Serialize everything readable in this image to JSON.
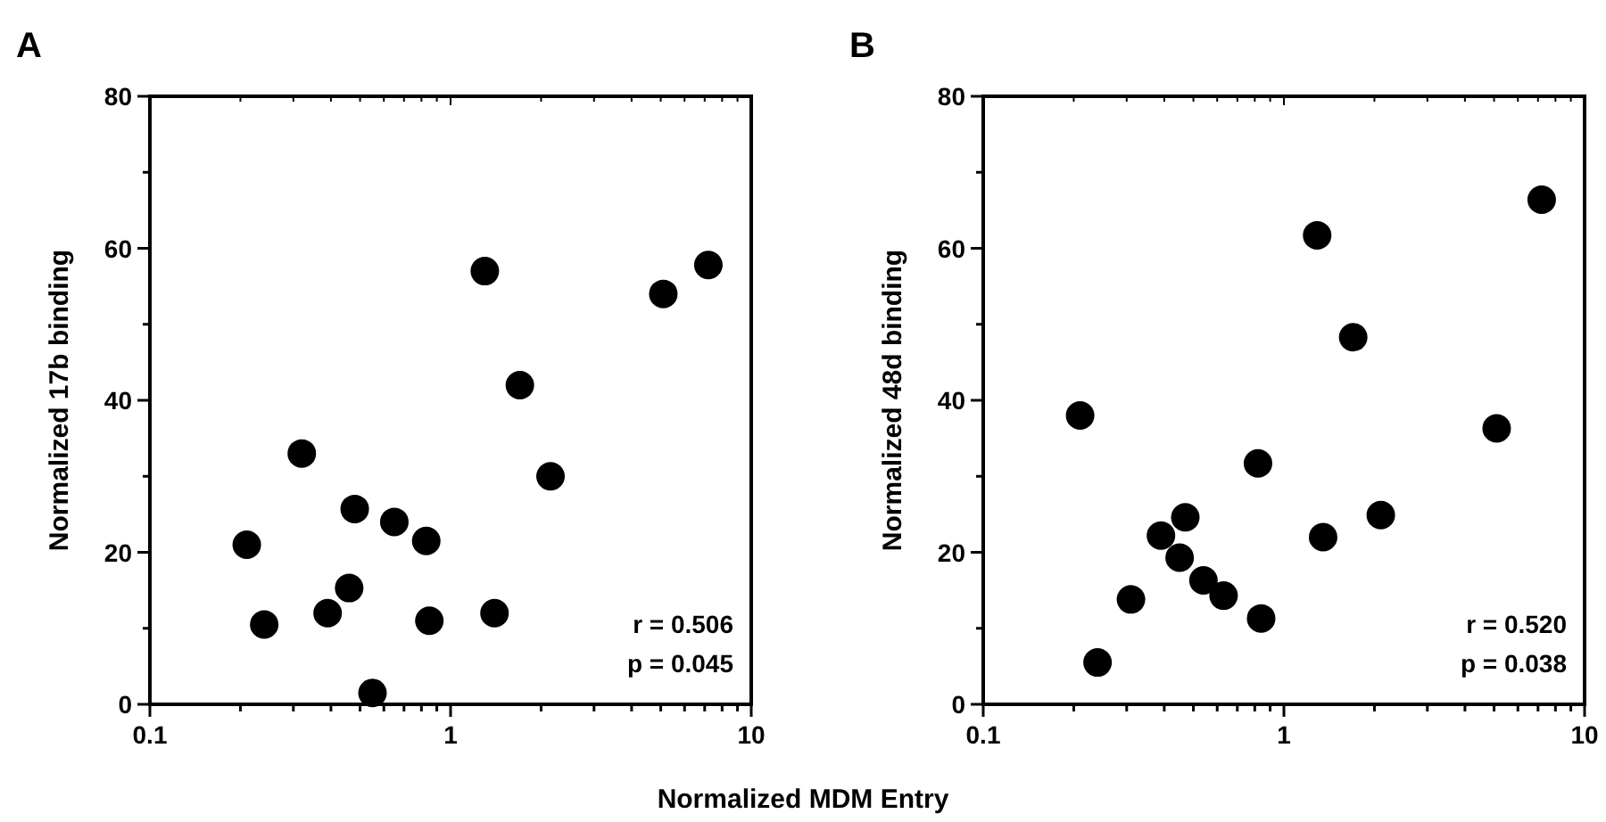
{
  "chart_data": [
    {
      "type": "scatter",
      "title": "A",
      "xlabel": "Normalized MDM Entry",
      "ylabel": "Normalized 17b binding",
      "log": "x",
      "grid": false,
      "marker": "circle",
      "xlim": [
        0.1,
        10
      ],
      "xticks": [
        0.1,
        {
          "value": 0.2,
          "label": null
        },
        {
          "value": 0.3,
          "label": null
        },
        {
          "value": 0.4,
          "label": null
        },
        {
          "value": 0.5,
          "label": null
        },
        {
          "value": 0.6,
          "label": null
        },
        {
          "value": 0.7,
          "label": null
        },
        {
          "value": 0.8,
          "label": null
        },
        {
          "value": 0.9,
          "label": null
        },
        1,
        {
          "value": 2,
          "label": null
        },
        {
          "value": 3,
          "label": null
        },
        {
          "value": 4,
          "label": null
        },
        {
          "value": 5,
          "label": null
        },
        {
          "value": 6,
          "label": null
        },
        {
          "value": 7,
          "label": null
        },
        {
          "value": 8,
          "label": null
        },
        {
          "value": 9,
          "label": null
        },
        10
      ],
      "ylim": [
        0,
        80
      ],
      "yticks": [
        0,
        {
          "value": 10,
          "label": null
        },
        20,
        {
          "value": 30,
          "label": null
        },
        40,
        {
          "value": 50,
          "label": null
        },
        60,
        {
          "value": 70,
          "label": null
        },
        80
      ],
      "x": [
        0.21,
        0.24,
        0.32,
        0.39,
        0.46,
        0.48,
        0.55,
        0.65,
        0.83,
        0.85,
        1.3,
        1.4,
        1.7,
        2.15,
        5.1,
        7.2
      ],
      "series": [
        {
          "color": "#000000",
          "values": [
            21,
            10.5,
            33,
            12,
            15.3,
            25.7,
            1.5,
            24,
            21.5,
            11,
            57,
            12,
            42,
            30,
            54,
            57.8
          ]
        }
      ],
      "annotations": [
        "r = 0.506",
        "p = 0.045"
      ]
    },
    {
      "type": "scatter",
      "title": "B",
      "ylabel": "Normalized 48d binding",
      "log": "x",
      "grid": false,
      "marker": "circle",
      "xlim": [
        0.1,
        10
      ],
      "xticks": [
        0.1,
        {
          "value": 0.2,
          "label": null
        },
        {
          "value": 0.3,
          "label": null
        },
        {
          "value": 0.4,
          "label": null
        },
        {
          "value": 0.5,
          "label": null
        },
        {
          "value": 0.6,
          "label": null
        },
        {
          "value": 0.7,
          "label": null
        },
        {
          "value": 0.8,
          "label": null
        },
        {
          "value": 0.9,
          "label": null
        },
        1,
        {
          "value": 2,
          "label": null
        },
        {
          "value": 3,
          "label": null
        },
        {
          "value": 4,
          "label": null
        },
        {
          "value": 5,
          "label": null
        },
        {
          "value": 6,
          "label": null
        },
        {
          "value": 7,
          "label": null
        },
        {
          "value": 8,
          "label": null
        },
        {
          "value": 9,
          "label": null
        },
        10
      ],
      "ylim": [
        0,
        80
      ],
      "yticks": [
        0,
        {
          "value": 10,
          "label": null
        },
        20,
        {
          "value": 30,
          "label": null
        },
        40,
        {
          "value": 50,
          "label": null
        },
        60,
        {
          "value": 70,
          "label": null
        },
        80
      ],
      "x": [
        0.21,
        0.24,
        0.31,
        0.39,
        0.45,
        0.47,
        0.54,
        0.63,
        0.82,
        0.84,
        1.29,
        1.35,
        1.7,
        2.1,
        5.1,
        7.2
      ],
      "series": [
        {
          "color": "#000000",
          "values": [
            38,
            5.5,
            13.8,
            22.2,
            19.3,
            24.6,
            16.3,
            14.3,
            31.7,
            11.3,
            61.7,
            22,
            48.3,
            24.9,
            36.3,
            66.4
          ]
        }
      ],
      "annotations": [
        "r = 0.520",
        "p = 0.038"
      ]
    }
  ]
}
